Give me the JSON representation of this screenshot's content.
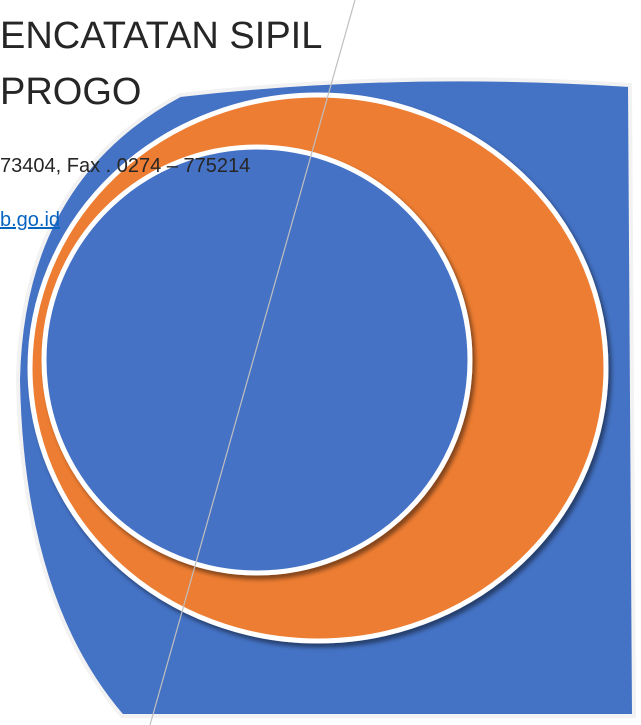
{
  "header": {
    "line1": "ENCATATAN SIPIL",
    "line2": "PROGO",
    "contact": "73404, Fax . 0274 – 775214",
    "link": "b.go.id"
  }
}
